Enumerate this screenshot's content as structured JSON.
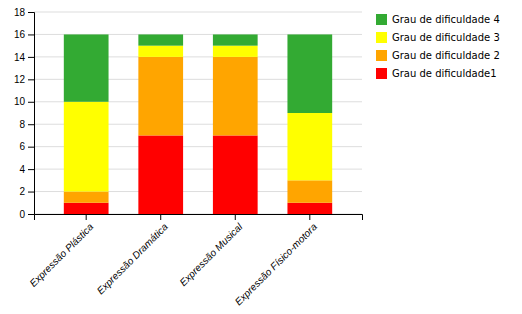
{
  "chart_data": {
    "type": "bar",
    "stacked": true,
    "categories": [
      "Expressão Plástica",
      "Expressão Dramática",
      "Expressão Musical",
      "Expressão Físico-motora"
    ],
    "series": [
      {
        "name": "Grau de dificuldade1",
        "color": "#FF0000",
        "values": [
          1,
          7,
          7,
          1
        ]
      },
      {
        "name": "Grau de dificuldade 2",
        "color": "#FFA500",
        "values": [
          1,
          7,
          7,
          2
        ]
      },
      {
        "name": "Grau de dificuldade 3",
        "color": "#FFFF00",
        "values": [
          8,
          1,
          1,
          6
        ]
      },
      {
        "name": "Grau de dificuldade 4",
        "color": "#33AA33",
        "values": [
          6,
          1,
          1,
          7
        ]
      }
    ],
    "ylim": [
      0,
      18
    ],
    "yticks": [
      0,
      2,
      4,
      6,
      8,
      10,
      12,
      14,
      16,
      18
    ],
    "grid": true,
    "legend": "right"
  }
}
